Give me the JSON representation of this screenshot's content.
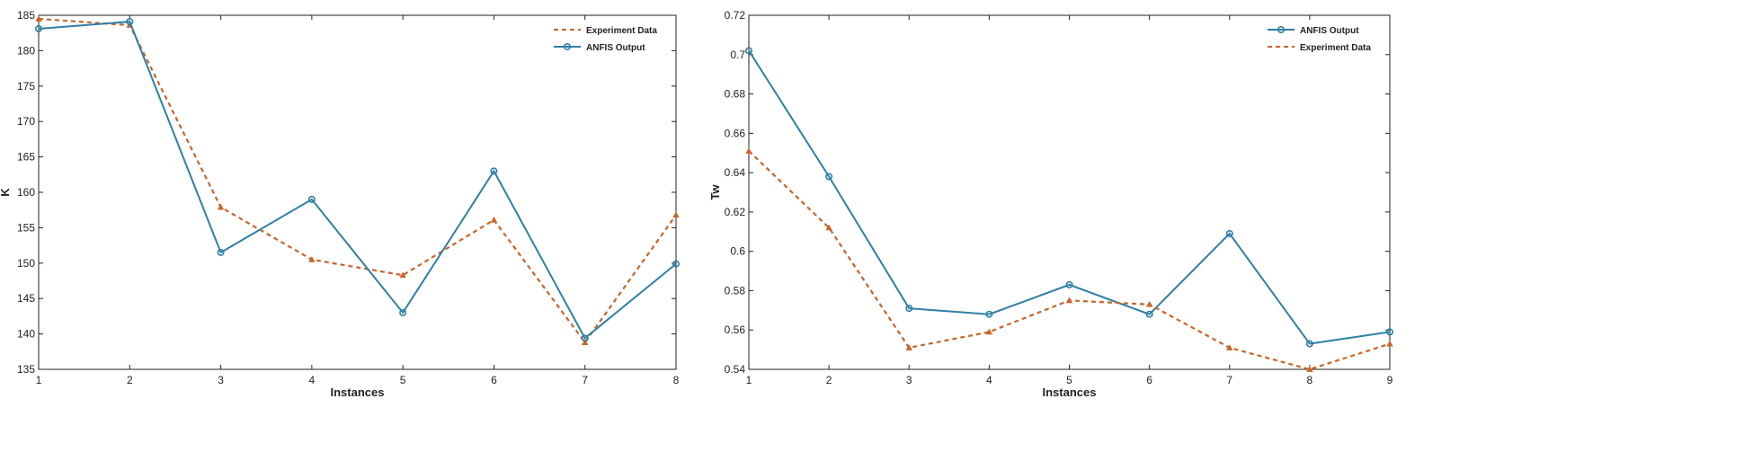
{
  "chart_data": [
    {
      "type": "line",
      "title": "",
      "xlabel": "Instances",
      "ylabel": "K",
      "x": [
        1,
        2,
        3,
        4,
        5,
        6,
        7,
        8
      ],
      "xlim": [
        1,
        8
      ],
      "ylim": [
        135,
        185
      ],
      "yticks": [
        135,
        140,
        145,
        150,
        155,
        160,
        165,
        170,
        175,
        180,
        185
      ],
      "legend_position": "top-right",
      "legend_order": [
        "Experiment Data",
        "ANFIS Output"
      ],
      "series": [
        {
          "name": "Experiment Data",
          "style": "dashed",
          "marker": "triangle",
          "color": "#c8652a",
          "values": [
            184.5,
            183.6,
            157.9,
            150.5,
            148.3,
            156.1,
            138.8,
            156.8
          ]
        },
        {
          "name": "ANFIS Output",
          "style": "solid",
          "marker": "circle",
          "color": "#2f7fa5",
          "values": [
            183.1,
            184.1,
            151.5,
            159.0,
            143.0,
            163.0,
            139.4,
            149.9
          ]
        }
      ]
    },
    {
      "type": "line",
      "title": "",
      "xlabel": "Instances",
      "ylabel": "Tw",
      "x": [
        1,
        2,
        3,
        4,
        5,
        6,
        7,
        8,
        9
      ],
      "xlim": [
        1,
        9
      ],
      "ylim": [
        0.54,
        0.72
      ],
      "yticks": [
        0.54,
        0.56,
        0.58,
        0.6,
        0.62,
        0.64,
        0.66,
        0.68,
        0.7,
        0.72
      ],
      "legend_position": "top-right",
      "legend_order": [
        "ANFIS Output",
        "Experiment Data"
      ],
      "series": [
        {
          "name": "ANFIS Output",
          "style": "solid",
          "marker": "circle",
          "color": "#2f7fa5",
          "values": [
            0.702,
            0.638,
            0.571,
            0.568,
            0.583,
            0.568,
            0.609,
            0.553,
            0.559
          ]
        },
        {
          "name": "Experiment Data",
          "style": "dashed",
          "marker": "triangle",
          "color": "#c8652a",
          "values": [
            0.651,
            0.612,
            0.551,
            0.559,
            0.575,
            0.573,
            0.551,
            0.54,
            0.553
          ]
        }
      ]
    }
  ]
}
